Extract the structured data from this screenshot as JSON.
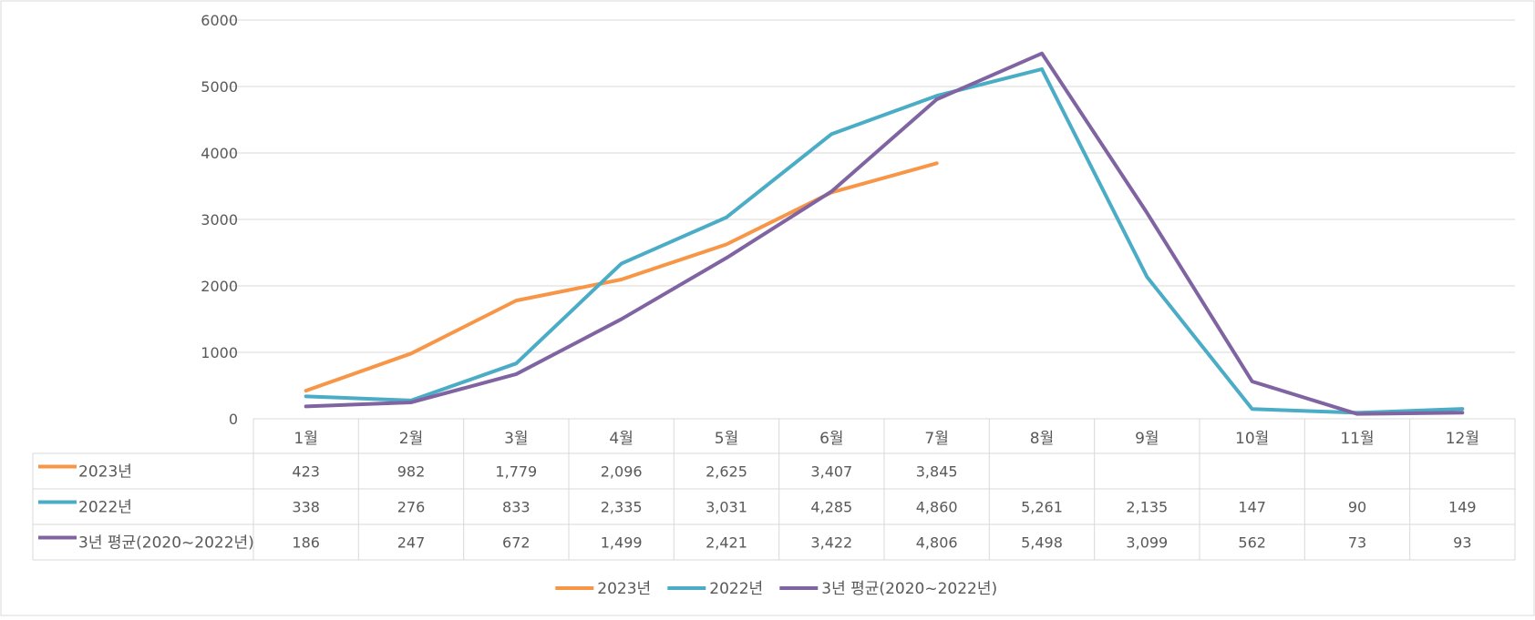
{
  "chart_data": {
    "type": "line",
    "categories": [
      "1월",
      "2월",
      "3월",
      "4월",
      "5월",
      "6월",
      "7월",
      "8월",
      "9월",
      "10월",
      "11월",
      "12월"
    ],
    "ylim": [
      0,
      6000
    ],
    "yticks": [
      "0",
      "1000",
      "2000",
      "3000",
      "4000",
      "5000",
      "6000"
    ],
    "grid": true,
    "legend_position": "bottom",
    "series": [
      {
        "name": "2023년",
        "color": "#F79646",
        "values": [
          423,
          982,
          1779,
          2096,
          2625,
          3407,
          3845,
          null,
          null,
          null,
          null,
          null
        ],
        "labels": [
          "423",
          "982",
          "1,779",
          "2,096",
          "2,625",
          "3,407",
          "3,845",
          "",
          "",
          "",
          "",
          ""
        ]
      },
      {
        "name": "2022년",
        "color": "#4BACC6",
        "values": [
          338,
          276,
          833,
          2335,
          3031,
          4285,
          4860,
          5261,
          2135,
          147,
          90,
          149
        ],
        "labels": [
          "338",
          "276",
          "833",
          "2,335",
          "3,031",
          "4,285",
          "4,860",
          "5,261",
          "2,135",
          "147",
          "90",
          "149"
        ]
      },
      {
        "name": "3년 평균(2020~2022년)",
        "color": "#8064A2",
        "values": [
          186,
          247,
          672,
          1499,
          2421,
          3422,
          4806,
          5498,
          3099,
          562,
          73,
          93
        ],
        "labels": [
          "186",
          "247",
          "672",
          "1,499",
          "2,421",
          "3,422",
          "4,806",
          "5,498",
          "3,099",
          "562",
          "73",
          "93"
        ]
      }
    ]
  }
}
